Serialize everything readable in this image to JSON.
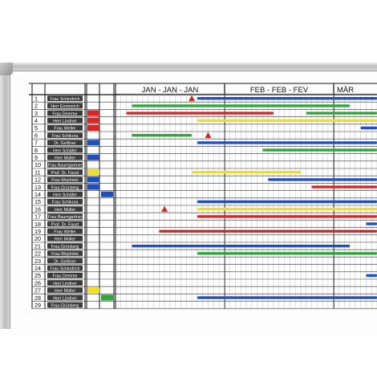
{
  "months": [
    {
      "label": "JAN - JAN - JAN"
    },
    {
      "label": "FEB - FEB - FEV"
    },
    {
      "label": "MÄR"
    }
  ],
  "rows": [
    {
      "num": "1",
      "name": "Frau Schindrich",
      "mark": ""
    },
    {
      "num": "2",
      "name": "Herr Emmerich",
      "mark": ""
    },
    {
      "num": "3",
      "name": "Frau Demme",
      "mark": "red"
    },
    {
      "num": "4",
      "name": "Herr Lindner",
      "mark": "red"
    },
    {
      "num": "5",
      "name": "Frau Weller",
      "mark": "red"
    },
    {
      "num": "6",
      "name": "Frau Schikora",
      "mark": ""
    },
    {
      "num": "7",
      "name": "Dr. Geißner",
      "mark": "blue"
    },
    {
      "num": "8",
      "name": "Herr Schäfer",
      "mark": ""
    },
    {
      "num": "9",
      "name": "Herr Müller",
      "mark": "blue"
    },
    {
      "num": "10",
      "name": "Frau Baumgartner",
      "mark": ""
    },
    {
      "num": "11",
      "name": "Prof. Dr. Faust",
      "mark": "yellow"
    },
    {
      "num": "12",
      "name": "Frau Mephisto",
      "mark": "blue"
    },
    {
      "num": "13",
      "name": "Frau Grünberg",
      "mark": "blue"
    },
    {
      "num": "14",
      "name": "Herr Schäfer",
      "mark": "blue2"
    },
    {
      "num": "15",
      "name": "Frau Schikora",
      "mark": ""
    },
    {
      "num": "16",
      "name": "Herr Müller",
      "mark": ""
    },
    {
      "num": "17",
      "name": "Frau Baumgartner",
      "mark": ""
    },
    {
      "num": "18",
      "name": "Prof. Dr. Faust",
      "mark": ""
    },
    {
      "num": "19",
      "name": "Frau Weller",
      "mark": ""
    },
    {
      "num": "20",
      "name": "Herr Müller",
      "mark": ""
    },
    {
      "num": "21",
      "name": "Frau Grünberg",
      "mark": ""
    },
    {
      "num": "22",
      "name": "Frau Mephisto",
      "mark": ""
    },
    {
      "num": "23",
      "name": "Dr. Geißner",
      "mark": ""
    },
    {
      "num": "24",
      "name": "Frau Schindrich",
      "mark": ""
    },
    {
      "num": "25",
      "name": "Frau Demme",
      "mark": ""
    },
    {
      "num": "26",
      "name": "Herr Lindner",
      "mark": ""
    },
    {
      "num": "27",
      "name": "Herr Müller",
      "mark": "yellow"
    },
    {
      "num": "28",
      "name": "Herr Lindner",
      "mark": "green"
    },
    {
      "num": "29",
      "name": "Frau Grünberg",
      "mark": ""
    }
  ],
  "bars": [
    {
      "row": 1,
      "color": "blue",
      "start": 15,
      "end": 48
    },
    {
      "row": 2,
      "color": "green",
      "start": 3,
      "end": 43
    },
    {
      "row": 3,
      "color": "red",
      "start": 2,
      "end": 29
    },
    {
      "row": 3,
      "color": "green",
      "start": 35,
      "end": 48
    },
    {
      "row": 4,
      "color": "yellow",
      "start": 15,
      "end": 48
    },
    {
      "row": 5,
      "color": "blue",
      "start": 45,
      "end": 48
    },
    {
      "row": 6,
      "color": "green",
      "start": 3,
      "end": 14
    },
    {
      "row": 7,
      "color": "blue",
      "start": 15,
      "end": 48
    },
    {
      "row": 8,
      "color": "green",
      "start": 27,
      "end": 48
    },
    {
      "row": 11,
      "color": "yellow",
      "start": 14,
      "end": 34
    },
    {
      "row": 12,
      "color": "blue",
      "start": 28,
      "end": 48
    },
    {
      "row": 13,
      "color": "red",
      "start": 36,
      "end": 48
    },
    {
      "row": 15,
      "color": "blue",
      "start": 15,
      "end": 48
    },
    {
      "row": 16,
      "color": "yellow",
      "start": 15,
      "end": 48
    },
    {
      "row": 17,
      "color": "red",
      "start": 15,
      "end": 48
    },
    {
      "row": 18,
      "color": "blue",
      "start": 46,
      "end": 48
    },
    {
      "row": 19,
      "color": "red",
      "start": 8,
      "end": 48
    },
    {
      "row": 21,
      "color": "blue",
      "start": 3,
      "end": 43
    },
    {
      "row": 22,
      "color": "green",
      "start": 15,
      "end": 48
    },
    {
      "row": 25,
      "color": "blue",
      "start": 46,
      "end": 48
    },
    {
      "row": 28,
      "color": "blue",
      "start": 15,
      "end": 48
    }
  ],
  "triangles": [
    {
      "row": 1,
      "pos": 14
    },
    {
      "row": 6,
      "pos": 17
    },
    {
      "row": 16,
      "pos": 9
    }
  ],
  "colors": {
    "blue": "#1f4fbf",
    "blue2": "#2c5cc9",
    "red": "#d82626",
    "green": "#2fa53a",
    "yellow": "#f2df1c",
    "nameplate": "#3a3a3a",
    "nameplate_text": "#ffffff",
    "line": "#111111"
  }
}
